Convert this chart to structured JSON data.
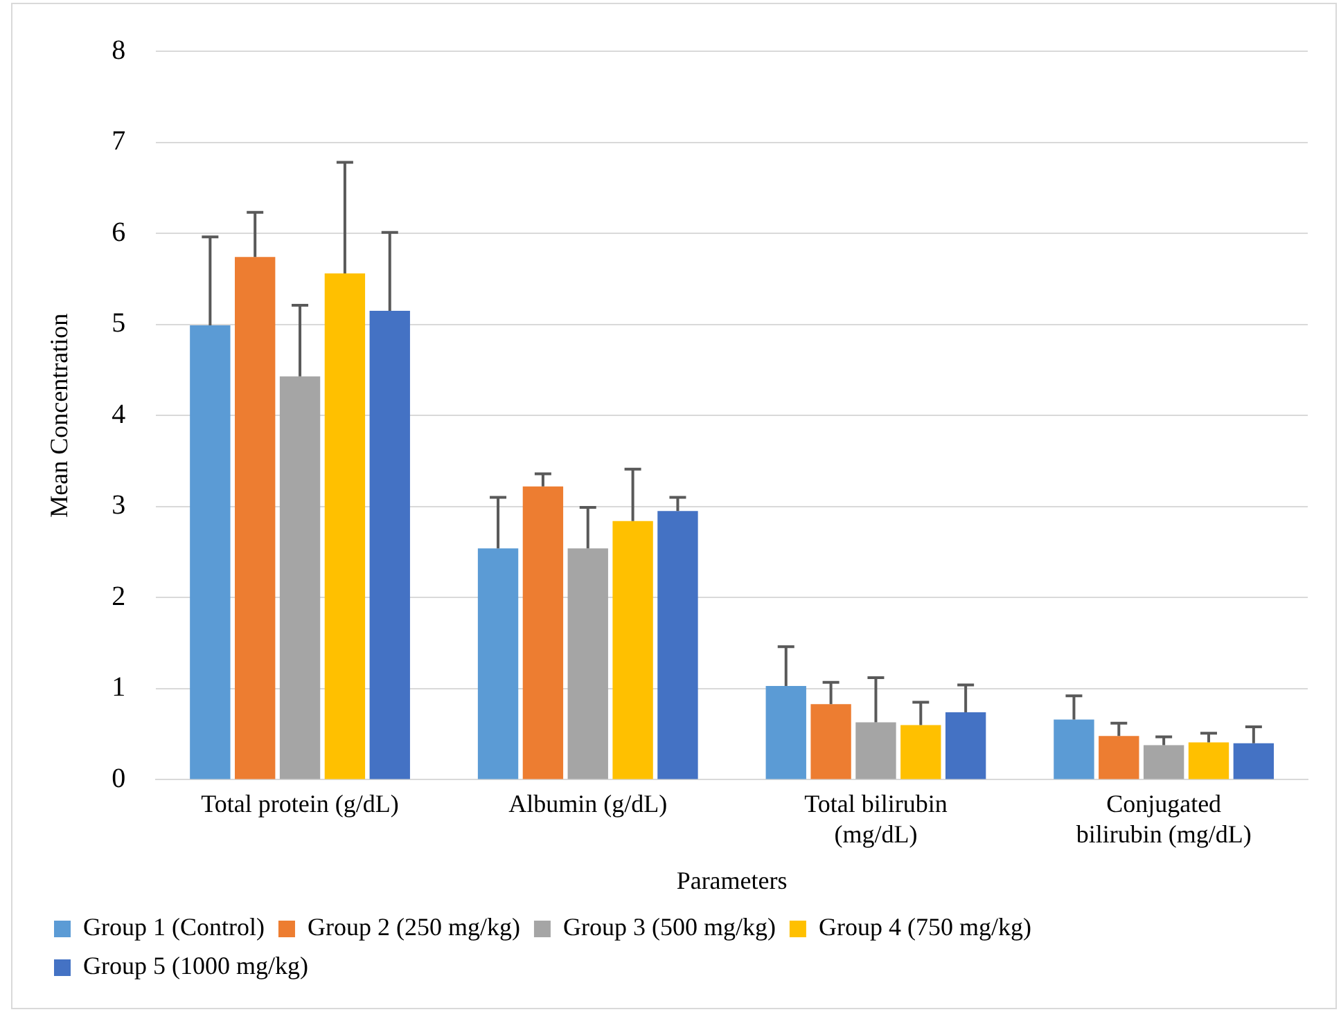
{
  "chart_data": {
    "type": "bar",
    "ylabel": "Mean Concentration",
    "xlabel": "Parameters",
    "categories": [
      "Total protein (g/dL)",
      "Albumin (g/dL)",
      "Total bilirubin (mg/dL)",
      "Conjugated bilirubin (mg/dL)"
    ],
    "ylim": [
      0,
      8
    ],
    "yticks": [
      0,
      1,
      2,
      3,
      4,
      5,
      6,
      7,
      8
    ],
    "grid": "y",
    "legend": "bottom",
    "series": [
      {
        "name": "Group 1 (Control)",
        "color": "#5b9bd5",
        "values": [
          4.99,
          2.54,
          1.03,
          0.66
        ],
        "errors": [
          [
            4.99,
            5.96
          ],
          [
            2.54,
            3.1
          ],
          [
            1.03,
            1.46
          ],
          [
            0.66,
            0.92
          ]
        ]
      },
      {
        "name": "Group 2 (250 mg/kg)",
        "color": "#ed7d31",
        "values": [
          5.74,
          3.22,
          0.83,
          0.48
        ],
        "errors": [
          [
            5.74,
            6.23
          ],
          [
            3.22,
            3.36
          ],
          [
            0.83,
            1.07
          ],
          [
            0.48,
            0.62
          ]
        ]
      },
      {
        "name": "Group 3 (500 mg/kg)",
        "color": "#a5a5a5",
        "values": [
          4.43,
          2.54,
          0.63,
          0.38
        ],
        "errors": [
          [
            4.43,
            5.21
          ],
          [
            2.54,
            2.99
          ],
          [
            0.63,
            1.12
          ],
          [
            0.38,
            0.47
          ]
        ]
      },
      {
        "name": "Group 4 (750 mg/kg)",
        "color": "#ffc000",
        "values": [
          5.56,
          2.84,
          0.6,
          0.41
        ],
        "errors": [
          [
            5.56,
            6.78
          ],
          [
            2.84,
            3.41
          ],
          [
            0.6,
            0.85
          ],
          [
            0.41,
            0.51
          ]
        ]
      },
      {
        "name": "Group 5 (1000 mg/kg)",
        "color": "#4472c4",
        "values": [
          5.15,
          2.95,
          0.74,
          0.4
        ],
        "errors": [
          [
            5.15,
            6.01
          ],
          [
            2.95,
            3.1
          ],
          [
            0.74,
            1.04
          ],
          [
            0.4,
            0.58
          ]
        ]
      }
    ]
  }
}
